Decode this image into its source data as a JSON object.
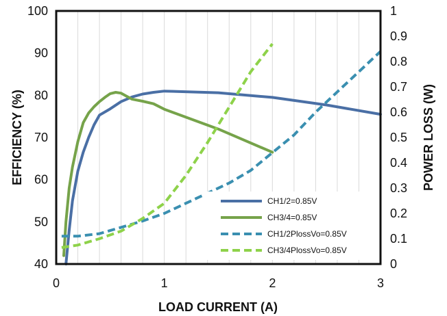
{
  "chart_data": {
    "type": "line",
    "xlabel": "LOAD CURRENT  (A)",
    "ylabel": "EFFICIENCY  (%)",
    "y2label": "POWER LOSS  (W)",
    "xlim": [
      0,
      3
    ],
    "ylim": [
      40,
      100
    ],
    "y2lim": [
      0,
      1
    ],
    "x_ticks": [
      "0",
      "1",
      "2",
      "3"
    ],
    "y_ticks": [
      "40",
      "50",
      "60",
      "70",
      "80",
      "90",
      "100"
    ],
    "y2_ticks": [
      "0",
      "0.1",
      "0.2",
      "0.3",
      "0.4",
      "0.5",
      "0.6",
      "0.7",
      "0.8",
      "0.9",
      "1"
    ],
    "grid": true,
    "legend_position": "bottom-right",
    "series": [
      {
        "name": "CH1/2=0.85V",
        "axis": "left",
        "color": "#4a6fa5",
        "style": "solid",
        "x": [
          0.09,
          0.12,
          0.15,
          0.2,
          0.25,
          0.3,
          0.35,
          0.4,
          0.5,
          0.6,
          0.7,
          0.8,
          0.9,
          1.0,
          1.5,
          2.0,
          2.5,
          3.0
        ],
        "y": [
          40.0,
          48.0,
          55.0,
          62.0,
          66.5,
          70.0,
          73.0,
          75.3,
          76.8,
          78.5,
          79.6,
          80.3,
          80.7,
          81.0,
          80.6,
          79.5,
          77.7,
          75.5
        ]
      },
      {
        "name": "CH3/4=0.85V",
        "axis": "left",
        "color": "#76a34a",
        "style": "solid",
        "x": [
          0.07,
          0.09,
          0.12,
          0.15,
          0.2,
          0.25,
          0.3,
          0.35,
          0.4,
          0.45,
          0.5,
          0.55,
          0.6,
          0.65,
          0.7,
          0.8,
          0.9,
          1.0,
          1.5,
          2.0
        ],
        "y": [
          42.0,
          50.0,
          58.0,
          63.0,
          69.0,
          73.5,
          75.8,
          77.3,
          78.5,
          79.5,
          80.4,
          80.7,
          80.5,
          79.8,
          79.1,
          78.6,
          78.0,
          76.7,
          72.0,
          66.5
        ]
      },
      {
        "name": "CH1/2PlossVo=0.85V",
        "axis": "right",
        "color": "#3a8fb0",
        "style": "dashed",
        "x": [
          0.05,
          0.2,
          0.4,
          0.6,
          0.8,
          1.0,
          1.2,
          1.4,
          1.6,
          1.8,
          2.0,
          2.2,
          2.4,
          2.6,
          2.8,
          3.0
        ],
        "y": [
          0.11,
          0.11,
          0.12,
          0.145,
          0.17,
          0.2,
          0.24,
          0.28,
          0.32,
          0.37,
          0.44,
          0.51,
          0.6,
          0.68,
          0.76,
          0.84
        ]
      },
      {
        "name": "CH3/4PlossVo=0.85V",
        "axis": "right",
        "color": "#8ed24a",
        "style": "dashed",
        "x": [
          0.05,
          0.2,
          0.4,
          0.6,
          0.8,
          1.0,
          1.2,
          1.4,
          1.6,
          1.8,
          2.0
        ],
        "y": [
          0.065,
          0.075,
          0.1,
          0.13,
          0.18,
          0.24,
          0.35,
          0.48,
          0.62,
          0.76,
          0.87
        ]
      }
    ]
  }
}
